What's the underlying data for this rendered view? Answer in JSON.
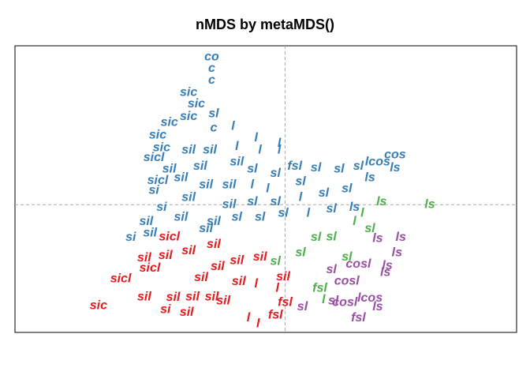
{
  "chart_data": {
    "type": "text-scatter",
    "title": "nMDS by metaMDS()",
    "xlim": [
      -1.4,
      1.2
    ],
    "ylim": [
      -0.9,
      1.12
    ],
    "reference_lines": {
      "x": 0,
      "y": 0
    },
    "series": [
      {
        "color": "#E41A1C",
        "x": [
          -0.967,
          -0.852,
          -0.701,
          -0.73,
          -0.62,
          -0.51,
          -0.58,
          -0.48,
          -0.38,
          -0.62,
          -0.73,
          -0.435,
          -0.24,
          -0.6,
          -0.5,
          -0.35,
          -0.25,
          0.0,
          -0.05,
          -0.15,
          -0.19,
          -0.14,
          -0.04,
          -0.32,
          -0.13,
          -0.01,
          -0.37
        ],
        "values": [
          -0.711,
          -0.522,
          -0.449,
          -0.65,
          -0.74,
          -0.76,
          -0.655,
          -0.65,
          -0.65,
          -0.36,
          -0.377,
          -0.516,
          -0.544,
          -0.227,
          -0.327,
          -0.438,
          -0.394,
          -0.69,
          -0.78,
          -0.56,
          -0.8,
          -0.84,
          -0.59,
          -0.68,
          -0.37,
          -0.51,
          -0.28
        ],
        "labels": [
          "sic",
          "sicl",
          "sicl",
          "sil",
          "si",
          "sil",
          "sil",
          "sil",
          "sil",
          "sil",
          "sil",
          "sil",
          "sil",
          "sicl",
          "sil",
          "sil",
          "sil",
          "fsl",
          "fsl",
          "l",
          "l",
          "l",
          "l",
          "sil",
          "sil",
          "sil",
          "sil"
        ]
      },
      {
        "color": "#984EA3",
        "x": [
          0.53,
          0.48,
          0.58,
          0.44,
          0.32,
          0.38,
          0.48,
          0.31,
          0.25,
          0.09,
          0.38,
          0.52,
          0.6,
          0.24
        ],
        "values": [
          -0.43,
          -0.24,
          -0.34,
          -0.66,
          -0.54,
          -0.8,
          -0.72,
          -0.69,
          -0.68,
          -0.72,
          -0.42,
          -0.48,
          -0.23,
          -0.46
        ],
        "labels": [
          "ls",
          "ls",
          "ls",
          "lcos",
          "cosl",
          "fsl",
          "ls",
          "cosl",
          "sl",
          "sl",
          "cosl",
          "ls",
          "ls",
          "sl"
        ]
      },
      {
        "color": "#4DAF4A",
        "x": [
          0.75,
          0.5,
          0.4,
          0.24,
          0.44,
          0.18,
          0.2,
          0.08,
          0.32,
          0.36,
          -0.05,
          0.16
        ],
        "values": [
          0.0,
          0.02,
          -0.06,
          -0.227,
          -0.17,
          -0.59,
          -0.67,
          -0.34,
          -0.37,
          -0.12,
          -0.4,
          -0.23
        ],
        "labels": [
          "ls",
          "ls",
          "l",
          "sl",
          "sl",
          "fsl",
          "l",
          "sl",
          "sl",
          "l",
          "sl",
          "sl"
        ]
      },
      {
        "color": "#377EB8",
        "x": [
          -0.38,
          -0.38,
          -0.38,
          -0.5,
          -0.46,
          -0.5,
          -0.6,
          -0.66,
          -0.37,
          -0.27,
          -0.64,
          -0.68,
          -0.6,
          -0.66,
          -0.68,
          -0.64,
          -0.72,
          -0.8,
          -0.7,
          -0.5,
          -0.39,
          -0.25,
          -0.13,
          -0.03,
          -0.25,
          -0.44,
          -0.54,
          -0.41,
          -0.5,
          -0.54,
          -0.41,
          -0.29,
          -0.17,
          -0.05,
          0.05,
          0.16,
          0.28,
          0.38,
          0.48,
          0.57,
          0.57,
          0.44,
          0.32,
          0.2,
          0.08,
          -0.05,
          -0.17,
          -0.29,
          -0.25,
          -0.13,
          -0.01,
          0.12,
          0.24,
          0.36,
          -0.37,
          -0.17,
          0.08,
          -0.09,
          -0.37,
          -0.15,
          -0.03
        ],
        "values": [
          1.04,
          0.96,
          0.875,
          0.79,
          0.71,
          0.62,
          0.58,
          0.49,
          0.64,
          0.55,
          0.4,
          0.33,
          0.25,
          0.17,
          0.1,
          -0.02,
          -0.12,
          -0.23,
          -0.2,
          0.385,
          0.385,
          0.41,
          0.385,
          0.385,
          0.3,
          0.27,
          0.19,
          0.14,
          0.05,
          -0.09,
          -0.17,
          0.14,
          0.25,
          0.22,
          0.27,
          0.26,
          0.25,
          0.27,
          0.3,
          0.35,
          0.26,
          0.19,
          0.11,
          0.08,
          0.05,
          0.02,
          0.02,
          0.0,
          -0.09,
          -0.09,
          -0.06,
          -0.06,
          -0.03,
          -0.02,
          -0.12,
          0.14,
          0.16,
          0.11,
          0.54,
          0.47,
          0.43
        ],
        "labels": [
          "co",
          "c",
          "c",
          "sic",
          "sic",
          "sic",
          "sic",
          "sic",
          "sl",
          "l",
          "sic",
          "sicl",
          "sil",
          "sicl",
          "si",
          "si",
          "sil",
          "si",
          "sil",
          "sil",
          "sil",
          "l",
          "l",
          "l",
          "sil",
          "sil",
          "sil",
          "sil",
          "sil",
          "sil",
          "sil",
          "sil",
          "sl",
          "sl",
          "fsl",
          "sl",
          "sl",
          "sl",
          "lcos",
          "cos",
          "ls",
          "ls",
          "sl",
          "sl",
          "l",
          "sl",
          "sl",
          "sil",
          "sl",
          "sl",
          "sl",
          "l",
          "sl",
          "ls",
          "sil",
          "l",
          "sl",
          "l",
          "c",
          "l",
          "l"
        ]
      }
    ]
  }
}
